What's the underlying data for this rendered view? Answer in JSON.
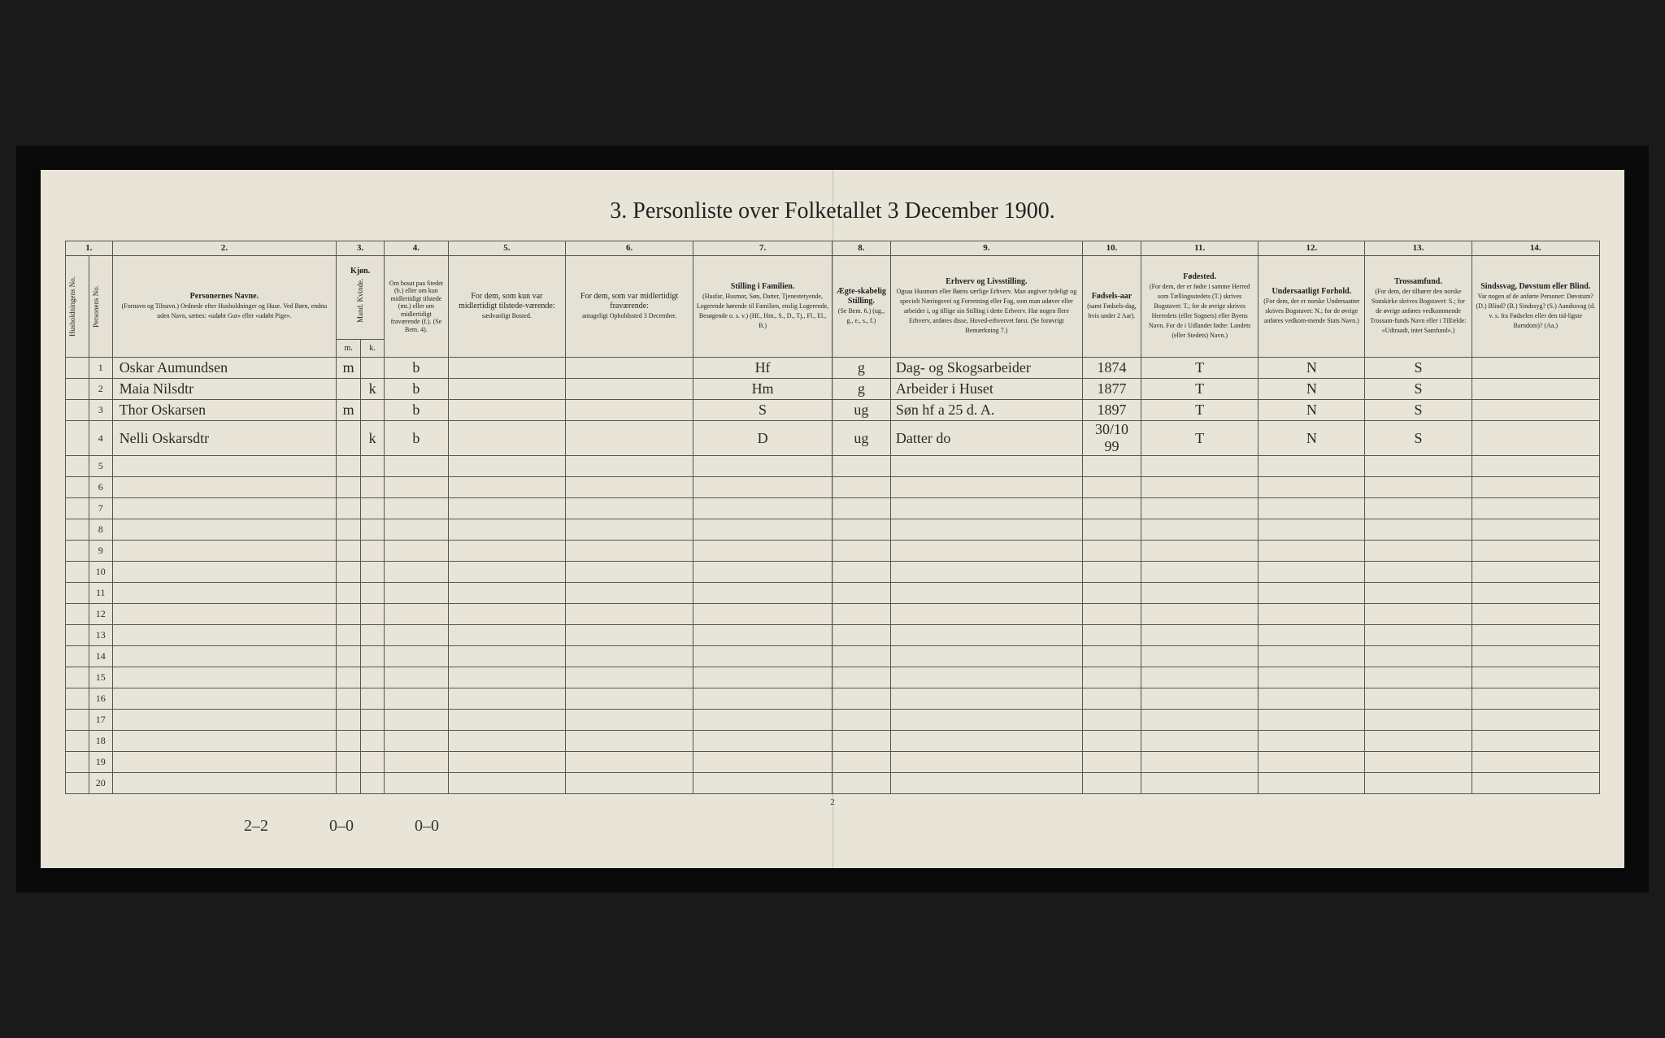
{
  "title": "3. Personliste over Folketallet 3 December 1900.",
  "page_number": "2",
  "footer_notes": [
    "2–2",
    "0–0",
    "0–0"
  ],
  "colors": {
    "page_bg": "#e8e4d8",
    "border": "#555555",
    "text": "#222222",
    "outer_bg": "#1a1a1a"
  },
  "columns": {
    "num_1": "1.",
    "num_2": "2.",
    "num_3": "3.",
    "num_4": "4.",
    "num_5": "5.",
    "num_6": "6.",
    "num_7": "7.",
    "num_8": "8.",
    "num_9": "9.",
    "num_10": "10.",
    "num_11": "11.",
    "num_12": "12.",
    "num_13": "13.",
    "num_14": "14.",
    "h1a": "Husholdningens No.",
    "h1b": "Personens No.",
    "h2": "Personernes Navne.",
    "h2_sub": "(Fornavn og Tilnavn.)\nOrdnede efter Husholdninger og Huse.\nVed Børn, endnu uden Navn, sættes: «udøbt Gut» eller «udøbt Pige».",
    "h3": "Kjøn.",
    "h3_sub": "Mand. Kvinde.",
    "h3_m": "m.",
    "h3_k": "k.",
    "h4": "Om bosat paa Stedet (b.) eller om kun midlertidigt tilstede (mt.) eller om midlertidigt fraværende (f.). (Se Bem. 4).",
    "h5": "For dem, som kun var midlertidigt tilstede-værende:",
    "h5_sub": "sædvanligt Bosted.",
    "h6": "For dem, som var midlertidigt fraværende:",
    "h6_sub": "antageligt Opholdssted 3 December.",
    "h7": "Stilling i Familien.",
    "h7_sub": "(Husfar, Husmor, Søn, Datter, Tjenestetyende, Logerende hørende til Familien, enslig Logerende, Besøgende o. s. v.) (Hf., Hm., S., D., Tj., Fl., El., B.)",
    "h8": "Ægte-skabelig Stilling.",
    "h8_sub": "(Se Bem. 6.) (ug., g., e., s., f.)",
    "h9": "Erhverv og Livsstilling.",
    "h9_sub": "Ogsaa Husmors eller Børns særlige Erhverv. Man angiver tydeligt og specielt Næringsvei og Forretning eller Fag, som man udøver eller arbeider i, og tillige sin Stilling i dette Erhverv. Har nogen flere Erhverv, anføres disse, Hoved-erhvervet først. (Se forøvrigt Bemærkning 7.)",
    "h10": "Fødsels-aar",
    "h10_sub": "(samt Fødsels-dag, hvis under 2 Aar).",
    "h11": "Fødested.",
    "h11_sub": "(For dem, der er fødte i samme Herred som Tællingsstedets (T.) skrives Bogstavet: T.; for de øvrige skrives Herredets (eller Sognets) eller Byens Navn. For de i Udlandet fødte: Landets (eller Stedets) Navn.)",
    "h12": "Undersaatligt Forhold.",
    "h12_sub": "(For dem, der er norske Undersaatter skrives Bogstavet: N.; for de øvrige anføres vedkom-mende Stats Navn.)",
    "h13": "Trossamfund.",
    "h13_sub": "(For dem, der tilhører den norske Statskirke skrives Bogstavet: S.; for de øvrige anføres vedkommende Trossam-funds Navn eller i Tilfælde: «Udtraadt, intet Samfund».)",
    "h14": "Sindssvag, Døvstum eller Blind.",
    "h14_sub": "Var nogen af de anførte Personer: Døvstum? (D.) Blind? (B.) Sindssyg? (S.) Aandssvag (d. v. s. fra Fødselen eller den tid-ligste Barndom)? (Aa.)"
  },
  "rows": [
    {
      "num": "1",
      "name": "Oskar Aumundsen",
      "sex_m": "m",
      "sex_k": "",
      "resid": "b",
      "col5": "",
      "col6": "",
      "family": "Hf",
      "marital": "g",
      "occupation": "Dag- og Skogsarbeider",
      "birth": "1874",
      "birthplace": "T",
      "nationality": "N",
      "faith": "S",
      "col14": ""
    },
    {
      "num": "2",
      "name": "Maia Nilsdtr",
      "sex_m": "",
      "sex_k": "k",
      "resid": "b",
      "col5": "",
      "col6": "",
      "family": "Hm",
      "marital": "g",
      "occupation": "Arbeider i Huset",
      "birth": "1877",
      "birthplace": "T",
      "nationality": "N",
      "faith": "S",
      "col14": ""
    },
    {
      "num": "3",
      "name": "Thor Oskarsen",
      "sex_m": "m",
      "sex_k": "",
      "resid": "b",
      "col5": "",
      "col6": "",
      "family": "S",
      "marital": "ug",
      "occupation": "Søn hf a 25 d. A.",
      "birth": "1897",
      "birthplace": "T",
      "nationality": "N",
      "faith": "S",
      "col14": ""
    },
    {
      "num": "4",
      "name": "Nelli Oskarsdtr",
      "sex_m": "",
      "sex_k": "k",
      "resid": "b",
      "col5": "",
      "col6": "",
      "family": "D",
      "marital": "ug",
      "occupation": "Datter do",
      "birth": "30/10 99",
      "birthplace": "T",
      "nationality": "N",
      "faith": "S",
      "col14": ""
    }
  ],
  "empty_rows": [
    "5",
    "6",
    "7",
    "8",
    "9",
    "10",
    "11",
    "12",
    "13",
    "14",
    "15",
    "16",
    "17",
    "18",
    "19",
    "20"
  ]
}
